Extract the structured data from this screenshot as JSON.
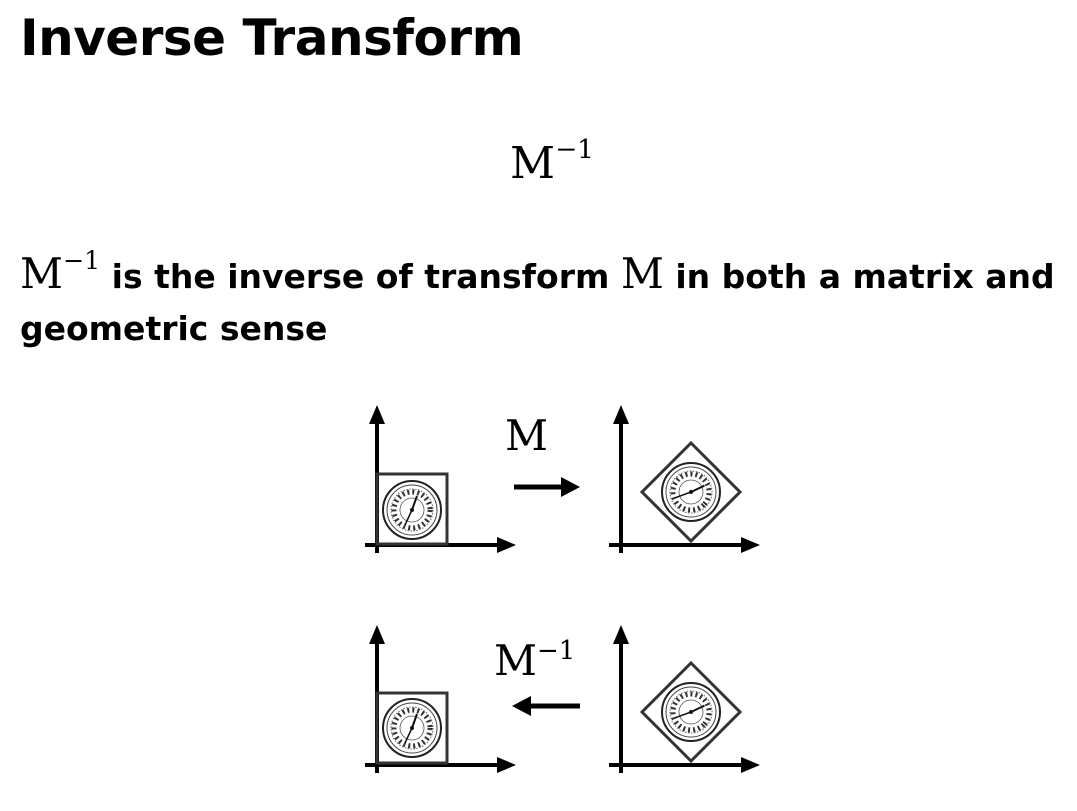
{
  "title": "Inverse Transform",
  "formula": {
    "base": "M",
    "exponent": "−1"
  },
  "description": {
    "part1": " is the inverse of transform ",
    "matrix_symbol": "M",
    "part2": " in both a matrix and geometric sense"
  },
  "diagram": {
    "forward_label": "M",
    "inverse_label_base": "M",
    "inverse_label_exponent": "−1",
    "forward_arrow_direction": "right",
    "inverse_arrow_direction": "left",
    "left_shape": "axis-aligned square with clock",
    "right_shape": "rotated square (45°) with clock",
    "icons": [
      "clock-icon",
      "arrow-right-icon",
      "arrow-left-icon"
    ]
  }
}
